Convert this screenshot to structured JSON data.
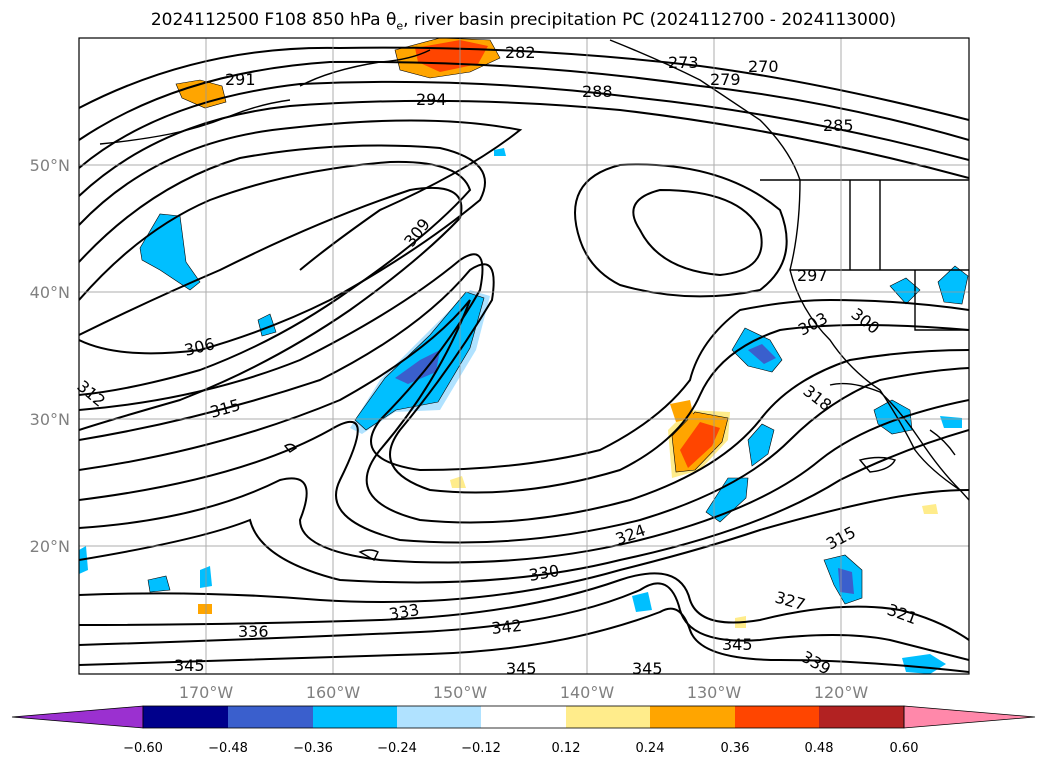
{
  "title": {
    "prefix": "2024112500 F108 850 hPa θ",
    "subscript": "e",
    "suffix": ", river basin precipitation PC (2024112700 - 2024113000)"
  },
  "map": {
    "projection": "mercator",
    "lon_range": [
      -180,
      -110
    ],
    "lat_range": [
      10,
      60
    ],
    "lat_ticks": [
      "20°N",
      "30°N",
      "40°N",
      "50°N"
    ],
    "lon_ticks": [
      "170°W",
      "160°W",
      "150°W",
      "140°W",
      "130°W",
      "120°W"
    ],
    "grid": true
  },
  "contour_labels": [
    "282",
    "291",
    "294",
    "288",
    "273",
    "279",
    "270",
    "285",
    "309",
    "297",
    "300",
    "303",
    "306",
    "312",
    "315",
    "318",
    "324",
    "330",
    "333",
    "336",
    "342",
    "345",
    "345",
    "345",
    "345",
    "339",
    "327",
    "321",
    "315"
  ],
  "colorbar": {
    "tick_labels": [
      "−0.60",
      "−0.48",
      "−0.36",
      "−0.24",
      "−0.12",
      "0.12",
      "0.24",
      "0.36",
      "0.48",
      "0.60"
    ],
    "colors": [
      "#9b30d0",
      "#00008b",
      "#3a5fcd",
      "#00bfff",
      "#b0e2ff",
      "#ffffff",
      "#ffec8b",
      "#ffa500",
      "#ff4500",
      "#b22222",
      "#ff88aa"
    ],
    "extend": "both"
  }
}
